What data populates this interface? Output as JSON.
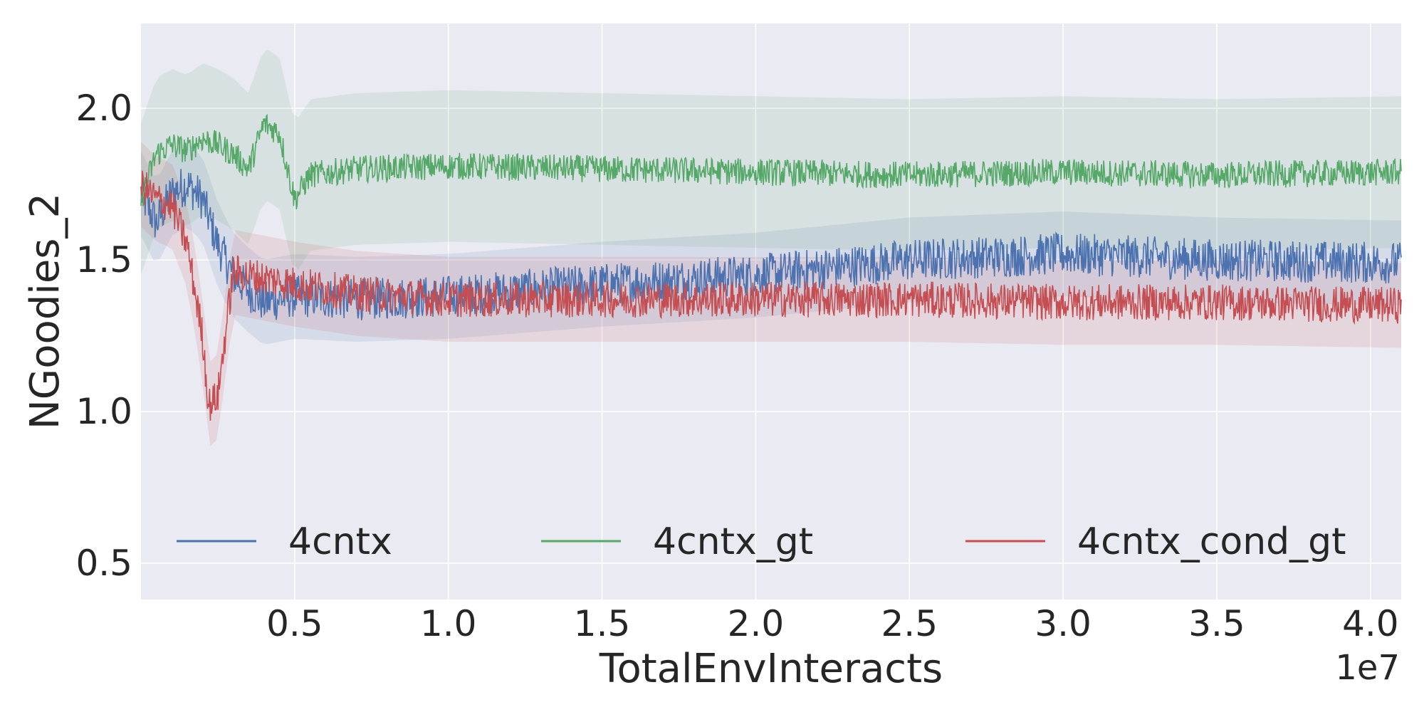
{
  "chart_data": {
    "type": "line",
    "xlabel": "TotalEnvInteracts",
    "ylabel": "NGoodies_2",
    "x_offset_label": "1e7",
    "xlim": [
      0,
      4.1
    ],
    "ylim": [
      0.38,
      2.28
    ],
    "x_ticks": [
      0.5,
      1.0,
      1.5,
      2.0,
      2.5,
      3.0,
      3.5,
      4.0
    ],
    "x_tick_labels": [
      "0.5",
      "1.0",
      "1.5",
      "2.0",
      "2.5",
      "3.0",
      "3.5",
      "4.0"
    ],
    "y_ticks": [
      0.5,
      1.0,
      1.5,
      2.0
    ],
    "y_tick_labels": [
      "0.5",
      "1.0",
      "1.5",
      "2.0"
    ],
    "grid": true,
    "legend_position": "lower center",
    "series": [
      {
        "name": "4cntx",
        "color": "#4c72b0",
        "x": [
          0,
          0.05,
          0.1,
          0.15,
          0.2,
          0.25,
          0.3,
          0.35,
          0.4,
          0.5,
          0.7,
          1.0,
          1.5,
          2.0,
          2.5,
          3.0,
          3.5,
          4.1
        ],
        "values": [
          1.72,
          1.62,
          1.72,
          1.75,
          1.7,
          1.55,
          1.45,
          1.4,
          1.36,
          1.38,
          1.37,
          1.38,
          1.42,
          1.45,
          1.5,
          1.52,
          1.5,
          1.49
        ],
        "noise": 0.07,
        "band": 0.14
      },
      {
        "name": "4cntx_gt",
        "color": "#55a868",
        "x": [
          0,
          0.05,
          0.1,
          0.15,
          0.2,
          0.25,
          0.3,
          0.35,
          0.4,
          0.45,
          0.5,
          0.55,
          0.7,
          1.0,
          1.5,
          2.0,
          2.5,
          3.0,
          3.5,
          4.1
        ],
        "values": [
          1.7,
          1.85,
          1.88,
          1.86,
          1.9,
          1.88,
          1.85,
          1.8,
          1.95,
          1.92,
          1.7,
          1.78,
          1.8,
          1.81,
          1.8,
          1.79,
          1.78,
          1.79,
          1.78,
          1.79
        ],
        "noise": 0.045,
        "band": 0.25
      },
      {
        "name": "4cntx_cond_gt",
        "color": "#c44e52",
        "x": [
          0,
          0.05,
          0.1,
          0.15,
          0.2,
          0.22,
          0.25,
          0.28,
          0.3,
          0.35,
          0.5,
          0.7,
          1.0,
          1.5,
          2.0,
          2.5,
          3.0,
          3.5,
          4.1
        ],
        "values": [
          1.75,
          1.7,
          1.68,
          1.55,
          1.25,
          1.02,
          1.05,
          1.3,
          1.46,
          1.45,
          1.42,
          1.39,
          1.37,
          1.37,
          1.37,
          1.37,
          1.36,
          1.36,
          1.35
        ],
        "noise": 0.06,
        "band": 0.14
      }
    ]
  }
}
